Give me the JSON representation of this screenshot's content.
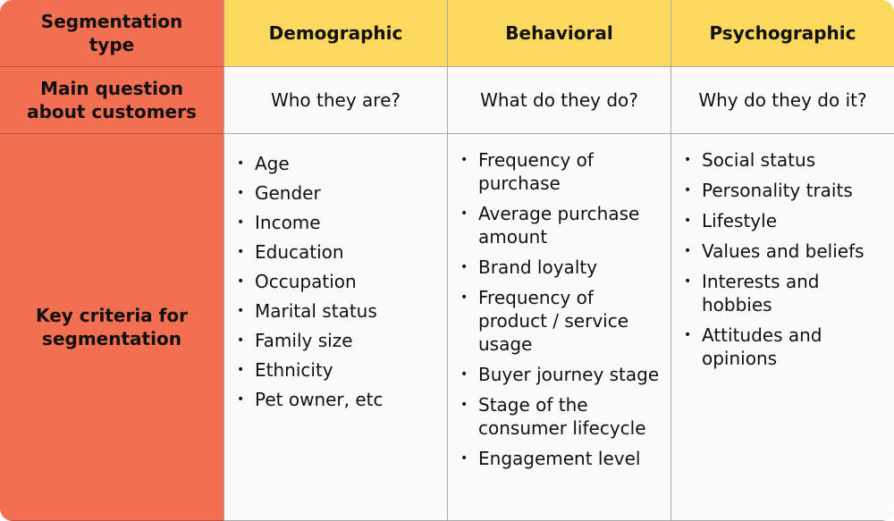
{
  "table": {
    "header": [
      "Segmentation type",
      "Demographic",
      "Behavioral",
      "Psychographic"
    ],
    "rows": [
      {
        "label": "Main question about customers",
        "cells": [
          "Who they are?",
          "What do they do?",
          "Why do they do it?"
        ]
      },
      {
        "label": "Key criteria for segmentation",
        "lists": [
          [
            "Age",
            "Gender",
            "Income",
            "Education",
            "Occupation",
            "Marital status",
            "Family size",
            "Ethnicity",
            "Pet owner, etc"
          ],
          [
            "Frequency of purchase",
            "Average purchase amount",
            "Brand loyalty",
            "Frequency of product / service usage",
            "Buyer journey stage",
            "Stage of the consumer lifecycle",
            "Engagement level"
          ],
          [
            "Social status",
            "Personality traits",
            "Lifestyle",
            "Values and beliefs",
            "Interests and hobbies",
            "Attitudes and opinions"
          ]
        ]
      }
    ]
  }
}
